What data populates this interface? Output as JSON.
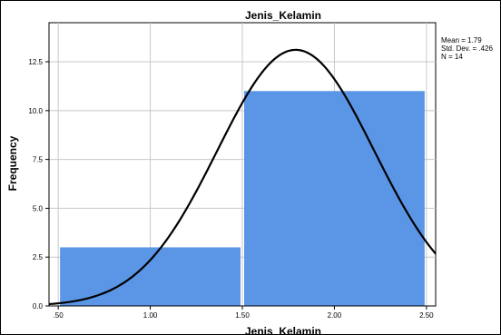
{
  "chart_data": {
    "type": "bar",
    "title": "Jenis_Kelamin",
    "xlabel": "Jenis_Kelamin",
    "ylabel": "Frequency",
    "xlim": [
      0.45,
      2.55
    ],
    "ylim": [
      0,
      14.5
    ],
    "x_ticks": [
      ".50",
      "1.00",
      "1.50",
      "2.00",
      "2.50"
    ],
    "x_tick_values": [
      0.5,
      1.0,
      1.5,
      2.0,
      2.5
    ],
    "y_ticks": [
      "0.0",
      "2.5",
      "5.0",
      "7.5",
      "10.0",
      "12.5"
    ],
    "y_tick_values": [
      0,
      2.5,
      5,
      7.5,
      10,
      12.5
    ],
    "bins": [
      {
        "from": 0.5,
        "to": 1.5,
        "value": 3
      },
      {
        "from": 1.5,
        "to": 2.5,
        "value": 11
      }
    ],
    "normal_curve": {
      "mean": 1.79,
      "sd": 0.426,
      "n": 14,
      "bin_width": 1.0
    },
    "stats": [
      "Mean = 1.79",
      "Std. Dev. = .426",
      "N = 14"
    ],
    "grid": true,
    "colors": {
      "bar": "#5b95e6",
      "curve": "#000000",
      "grid": "#c8c8c8"
    }
  }
}
